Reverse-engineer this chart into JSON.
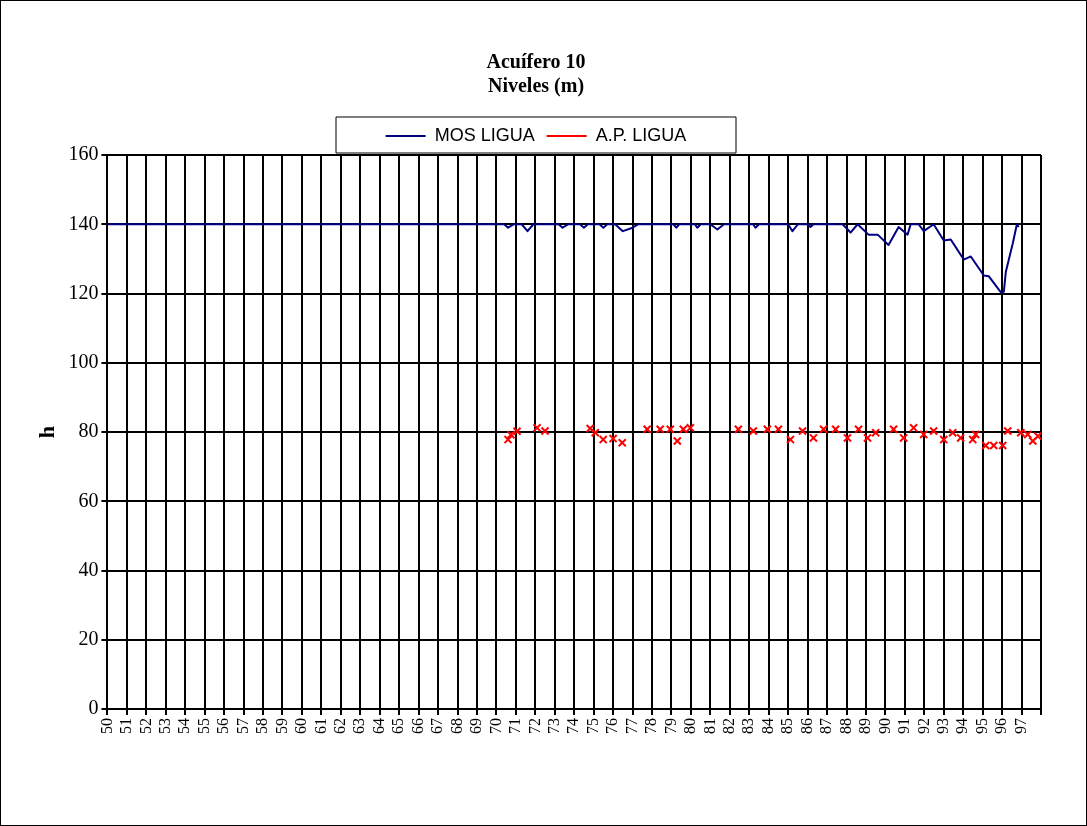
{
  "chart_data": {
    "type": "line",
    "title": [
      "Acuífero 10",
      "Niveles (m)"
    ],
    "ylabel": "h",
    "xlim": [
      50,
      98
    ],
    "xticks": [
      50,
      51,
      52,
      53,
      54,
      55,
      56,
      57,
      58,
      59,
      60,
      61,
      62,
      63,
      64,
      65,
      66,
      67,
      68,
      69,
      70,
      71,
      72,
      73,
      74,
      75,
      76,
      77,
      78,
      79,
      80,
      81,
      82,
      83,
      84,
      85,
      86,
      87,
      88,
      89,
      90,
      91,
      92,
      93,
      94,
      95,
      96,
      97,
      {
        "value": 98,
        "label": null
      }
    ],
    "ylim": [
      0,
      160
    ],
    "yticks": [
      0,
      20,
      40,
      60,
      80,
      100,
      120,
      140,
      160
    ],
    "grid": true,
    "legend": "top",
    "series": [
      {
        "name": "MOS LIGUA",
        "type": "line",
        "color": "#000080",
        "marker": "none",
        "x": [
          50,
          70.4,
          70.6,
          70.9,
          71.3,
          71.6,
          71.9,
          73.2,
          73.4,
          73.7,
          74.3,
          74.5,
          74.7,
          75.3,
          75.5,
          75.7,
          76.1,
          76.5,
          77.0,
          77.3,
          79.1,
          79.25,
          79.4,
          80.2,
          80.33,
          80.5,
          81.0,
          81.36,
          81.7,
          83.2,
          83.32,
          83.5,
          85.0,
          85.22,
          85.5,
          86.0,
          86.15,
          86.3,
          87.8,
          88.21,
          88.57,
          89.13,
          89.6,
          90.16,
          90.68,
          91.14,
          91.3,
          91.71,
          91.97,
          92.48,
          93.0,
          93.36,
          94.03,
          94.39,
          95.06,
          95.31,
          95.93,
          96.09,
          96.19,
          96.55,
          96.76,
          96.86
        ],
        "values": [
          140,
          140,
          139,
          140,
          140,
          138,
          140,
          140,
          139,
          140,
          140,
          139,
          140,
          140,
          139,
          140,
          140,
          138,
          139,
          140,
          140,
          139,
          140,
          140,
          139,
          140,
          140,
          138.5,
          140,
          140,
          139,
          140,
          140,
          138,
          140,
          140,
          139.2,
          140,
          140,
          137.6,
          140,
          137,
          137,
          134,
          139.2,
          137,
          140,
          140,
          138,
          140,
          135.3,
          135.6,
          129.8,
          130.7,
          125.2,
          125,
          120.4,
          120.5,
          126.2,
          134.5,
          140,
          139.2
        ]
      },
      {
        "name": "A.P. LIGUA",
        "type": "scatter",
        "color": "#ff0000",
        "marker": "cross",
        "x": [
          70.6,
          70.75,
          71.06,
          72.09,
          72.5,
          74.82,
          75.08,
          75.49,
          76.0,
          76.47,
          77.75,
          78.42,
          78.94,
          79.3,
          79.61,
          79.97,
          82.44,
          83.21,
          83.93,
          84.5,
          85.12,
          85.74,
          86.3,
          86.82,
          87.44,
          88.05,
          88.62,
          89.08,
          89.5,
          90.42,
          90.94,
          91.45,
          91.97,
          92.48,
          93.0,
          93.46,
          93.87,
          94.49,
          94.64,
          95.16,
          95.57,
          96.03,
          96.29,
          96.96,
          97.32,
          97.58,
          97.84
        ],
        "values": [
          77.8,
          79.2,
          80.2,
          81.2,
          80.3,
          81,
          79.8,
          77.8,
          78.1,
          76.9,
          80.8,
          80.8,
          80.8,
          77.4,
          80.8,
          81.2,
          80.8,
          80.3,
          80.8,
          80.8,
          77.8,
          80.3,
          78.3,
          80.8,
          80.8,
          78.3,
          80.8,
          78.3,
          79.8,
          80.8,
          78.3,
          81.2,
          79.3,
          80.3,
          77.8,
          79.8,
          78.3,
          77.8,
          79.3,
          76.1,
          76.1,
          76.1,
          80.3,
          79.8,
          79.3,
          77.4,
          78.8
        ]
      }
    ]
  }
}
